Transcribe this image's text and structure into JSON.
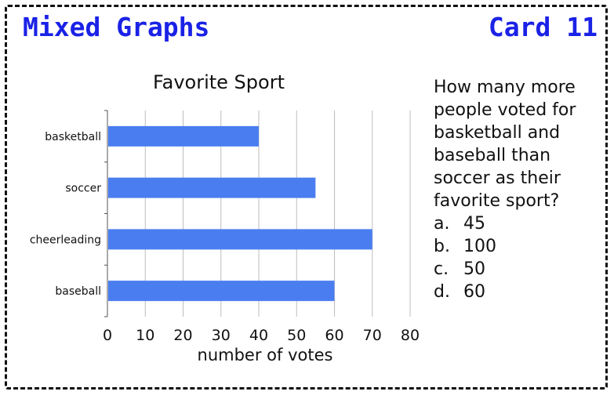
{
  "card": {
    "title": "Mixed Graphs",
    "card_label": "Card 11"
  },
  "question": {
    "text": "How many more people voted for basketball and baseball than soccer as their favorite sport?",
    "answers": [
      {
        "letter": "a.",
        "value": "45"
      },
      {
        "letter": "b.",
        "value": "100"
      },
      {
        "letter": "c.",
        "value": "50"
      },
      {
        "letter": "d.",
        "value": "60"
      }
    ]
  },
  "chart_data": {
    "type": "bar",
    "orientation": "horizontal",
    "title": "Favorite Sport",
    "xlabel": "number of votes",
    "ylabel": "",
    "categories": [
      "basketball",
      "soccer",
      "cheerleading",
      "baseball"
    ],
    "values": [
      40,
      55,
      70,
      60
    ],
    "xlim": [
      0,
      80
    ],
    "xticks": [
      0,
      10,
      20,
      30,
      40,
      50,
      60,
      70,
      80
    ],
    "grid": "vertical",
    "legend": "none",
    "bar_color": "#4a7ef0"
  }
}
